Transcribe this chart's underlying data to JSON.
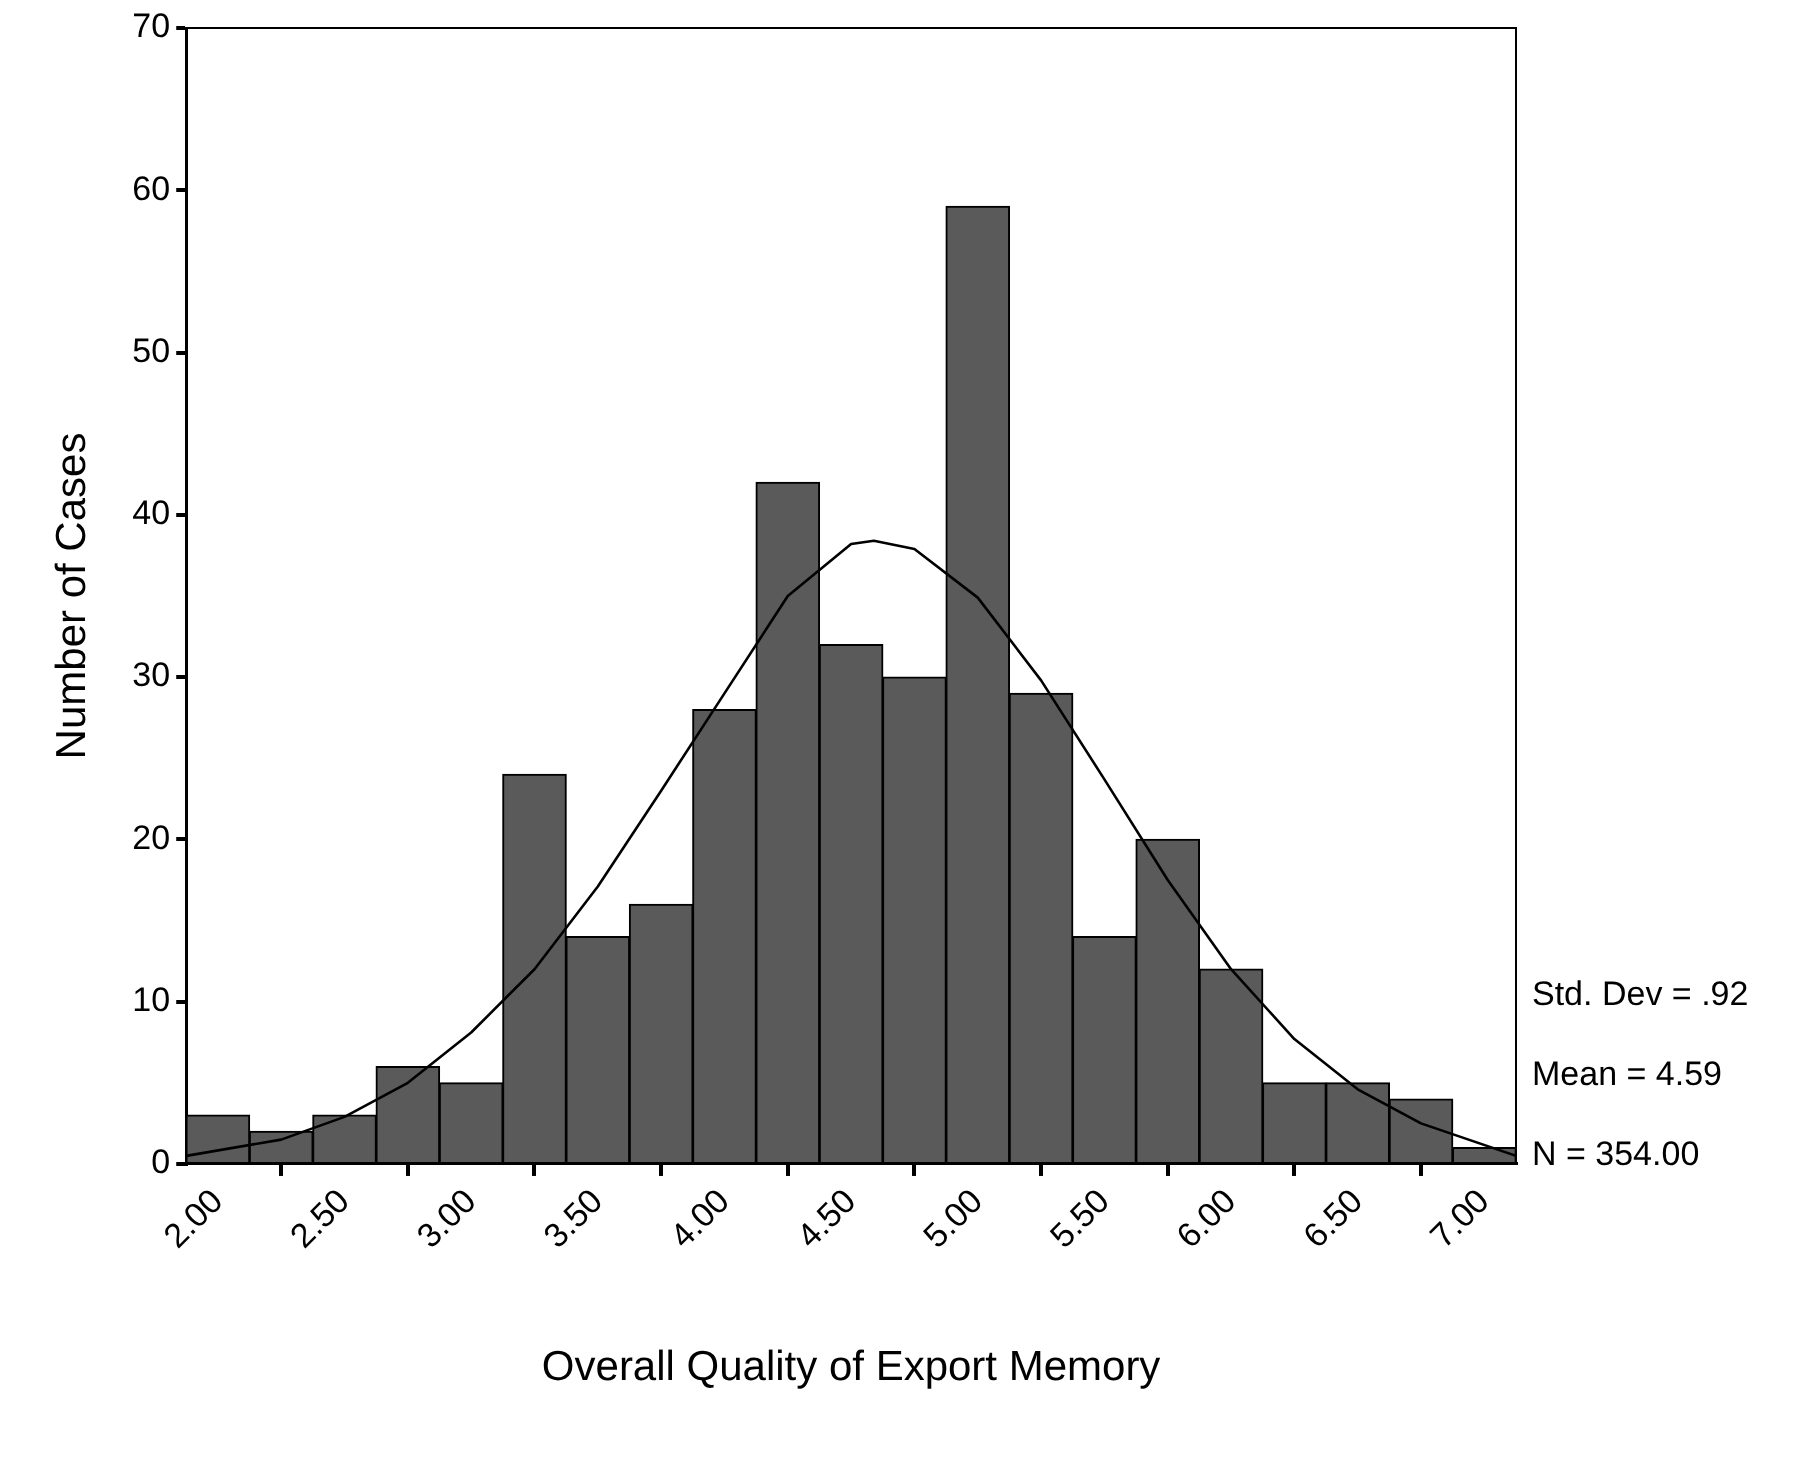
{
  "chart_data": {
    "type": "histogram",
    "xlabel": "Overall Quality of Export Memory",
    "ylabel": "Number of Cases",
    "bins": [
      1.875,
      2.125,
      2.375,
      2.625,
      2.875,
      3.125,
      3.375,
      3.625,
      3.875,
      4.125,
      4.375,
      4.625,
      4.875,
      5.125,
      5.375,
      5.625,
      5.875,
      6.125,
      6.375,
      6.625,
      6.875,
      7.125
    ],
    "series": [
      {
        "color": "#5a5a5a",
        "values": [
          3,
          2,
          3,
          6,
          5,
          24,
          14,
          16,
          28,
          42,
          32,
          30,
          59,
          29,
          14,
          20,
          12,
          5,
          5,
          4,
          1
        ]
      },
      {
        "type": "line",
        "color": "#000000",
        "x": [
          1.875,
          2.25,
          2.5,
          2.75,
          3.0,
          3.25,
          3.5,
          3.75,
          4.0,
          4.25,
          4.5,
          4.59,
          4.75,
          5.0,
          5.25,
          5.5,
          5.75,
          6.0,
          6.25,
          6.5,
          6.75,
          7.125
        ],
        "values": [
          0.5,
          1.5,
          2.9,
          5,
          8.1,
          12,
          17.1,
          23,
          29,
          35,
          38.2,
          38.4,
          37.9,
          34.9,
          29.8,
          23.7,
          17.5,
          12,
          7.7,
          4.6,
          2.5,
          0.5
        ]
      }
    ],
    "xlim": [
      1.875,
      7.125
    ],
    "xticks": [
      {
        "value": 2,
        "label": "2.00"
      },
      {
        "value": 2.5,
        "label": "2.50"
      },
      {
        "value": 3,
        "label": "3.00"
      },
      {
        "value": 3.5,
        "label": "3.50"
      },
      {
        "value": 4,
        "label": "4.00"
      },
      {
        "value": 4.5,
        "label": "4.50"
      },
      {
        "value": 5,
        "label": "5.00"
      },
      {
        "value": 5.5,
        "label": "5.50"
      },
      {
        "value": 6,
        "label": "6.00"
      },
      {
        "value": 6.5,
        "label": "6.50"
      },
      {
        "value": 7,
        "label": "7.00"
      }
    ],
    "ylim": [
      0,
      70
    ],
    "yticks": [
      0,
      10,
      20,
      30,
      40,
      50,
      60,
      70
    ],
    "annotations": [
      "Std. Dev = .92",
      "Mean = 4.59",
      "N = 354.00"
    ],
    "grid": false,
    "legend": false,
    "marker": "none",
    "line_style": "solid"
  }
}
